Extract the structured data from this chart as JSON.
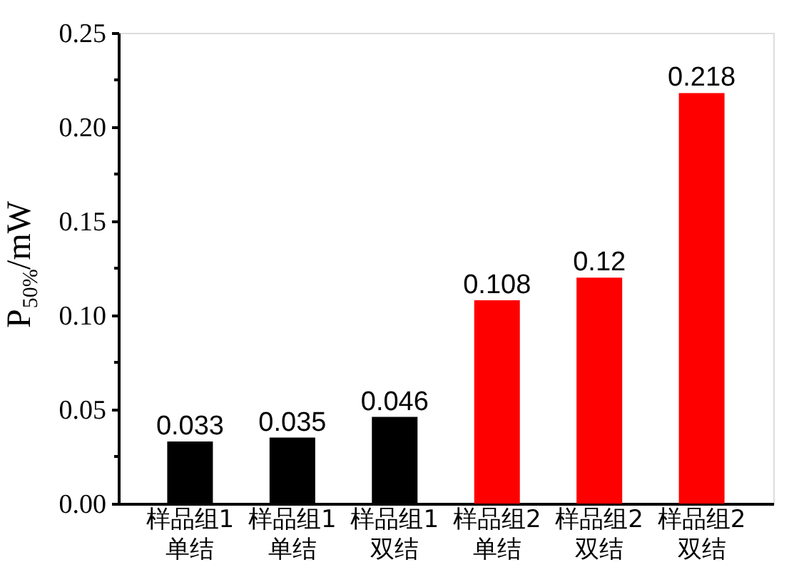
{
  "chart_data": {
    "type": "bar",
    "ylabel": "P$_{50%}$/mW",
    "categories": [
      "样品组1\n单结",
      "样品组1\n单结",
      "样品组1\n双结",
      "样品组2\n单结",
      "样品组2\n双结",
      "样品组2\n双结"
    ],
    "values": [
      0.033,
      0.035,
      0.046,
      0.108,
      0.12,
      0.218
    ],
    "colors": [
      "#000000",
      "#000000",
      "#000000",
      "#ff0000",
      "#ff0000",
      "#ff0000"
    ],
    "data_labels": true,
    "ylim": [
      0,
      0.25
    ],
    "yticks": [
      {
        "value": 0,
        "label": "0.00"
      },
      {
        "value": 0.025,
        "label": null
      },
      0.05,
      {
        "value": 0.075,
        "label": null
      },
      {
        "value": 0.1,
        "label": "0.10"
      },
      {
        "value": 0.125,
        "label": null
      },
      0.15,
      {
        "value": 0.175,
        "label": null
      },
      {
        "value": 0.2,
        "label": "0.20"
      },
      {
        "value": 0.225,
        "label": null
      },
      0.25
    ],
    "grid": false
  }
}
